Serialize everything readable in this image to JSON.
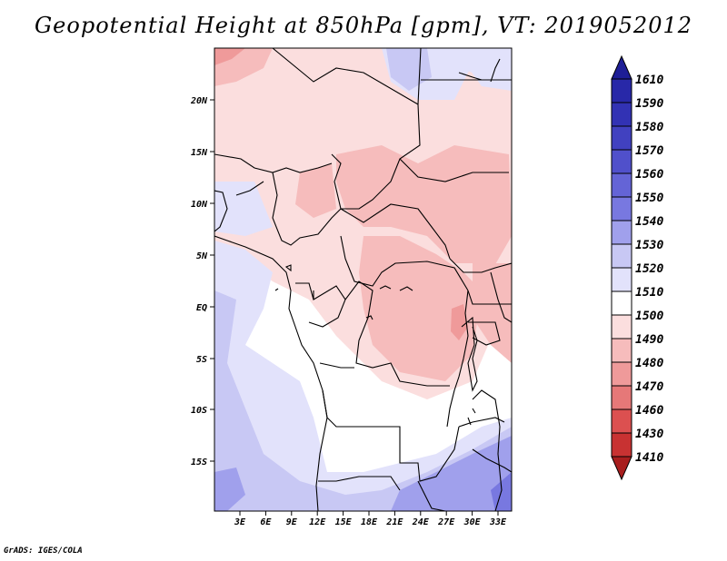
{
  "title": "Geopotential Height at 850hPa [gpm], VT: 2019052012",
  "credit": "GrADS: IGES/COLA",
  "map": {
    "variable": "Geopotential Height at 850hPa",
    "units": "gpm",
    "valid_time": "2019052012",
    "lat_labels": [
      "20N",
      "15N",
      "10N",
      "5N",
      "EQ",
      "5S",
      "10S",
      "15S"
    ],
    "lon_labels": [
      "3E",
      "6E",
      "9E",
      "12E",
      "15E",
      "18E",
      "21E",
      "24E",
      "27E",
      "30E",
      "33E"
    ]
  },
  "legend": {
    "levels": [
      "1610",
      "1590",
      "1580",
      "1570",
      "1560",
      "1550",
      "1540",
      "1530",
      "1520",
      "1510",
      "1500",
      "1490",
      "1480",
      "1470",
      "1460",
      "1430",
      "1410"
    ],
    "colors": [
      "#1e1e96",
      "#2828a8",
      "#3232b4",
      "#4141c0",
      "#5050cb",
      "#6464d6",
      "#7878e0",
      "#a0a0ec",
      "#c8c8f4",
      "#e2e2fb",
      "#ffffff",
      "#fbdede",
      "#f6bcbc",
      "#ef9a9a",
      "#e67878",
      "#dc5050",
      "#c83232",
      "#a81e1e"
    ]
  }
}
